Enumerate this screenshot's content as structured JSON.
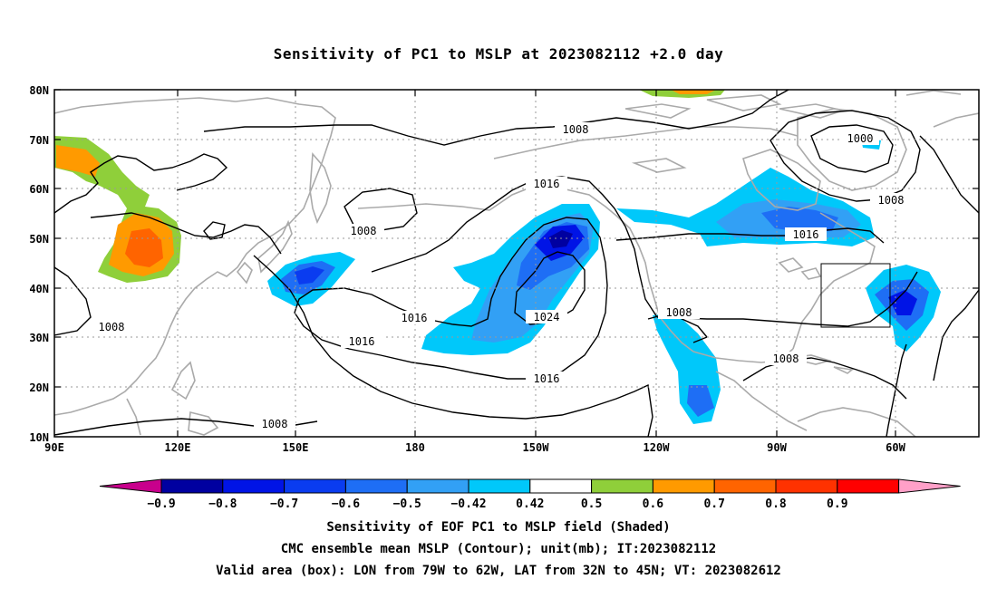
{
  "title": "Sensitivity of PC1 to MSLP at 2023082112 +2.0 day",
  "axes": {
    "lat_labels": [
      "80N",
      "70N",
      "60N",
      "50N",
      "40N",
      "30N",
      "20N",
      "10N"
    ],
    "lon_labels": [
      "90E",
      "120E",
      "150E",
      "180",
      "150W",
      "120W",
      "90W",
      "60W"
    ]
  },
  "contour_labels": {
    "l1008_top": "1008",
    "l1000": "1000",
    "l1008_ne": "1008",
    "l1016_north": "1016",
    "l1008_west": "1008",
    "l1016_east": "1016",
    "l1016_mid": "1016",
    "l1024": "1024",
    "l1016_left": "1016",
    "l1008_sw": "1008",
    "l1016_south": "1016",
    "l1008_mex": "1008",
    "l1008_carib": "1008",
    "l1008_bottom": "1008"
  },
  "colorbar": {
    "labels": [
      "−0.9",
      "−0.8",
      "−0.7",
      "−0.6",
      "−0.5",
      "−0.42",
      "0.42",
      "0.5",
      "0.6",
      "0.7",
      "0.8",
      "0.9"
    ],
    "colors": [
      "#c8008c",
      "#0000a0",
      "#0014e6",
      "#0a3cf0",
      "#1e6ef5",
      "#32a0f5",
      "#00c8fa",
      "#ffffff",
      "#8fcf3a",
      "#ff9a00",
      "#ff6400",
      "#ff3200",
      "#ff0000",
      "#ffa0c8"
    ]
  },
  "captions": {
    "line1": "Sensitivity of EOF PC1 to MSLP field (Shaded)",
    "line2": "CMC ensemble mean MSLP (Contour); unit(mb); IT:2023082112",
    "line3": "Valid area (box): LON from 79W to 62W, LAT from 32N to 45N; VT: 2023082612"
  }
}
